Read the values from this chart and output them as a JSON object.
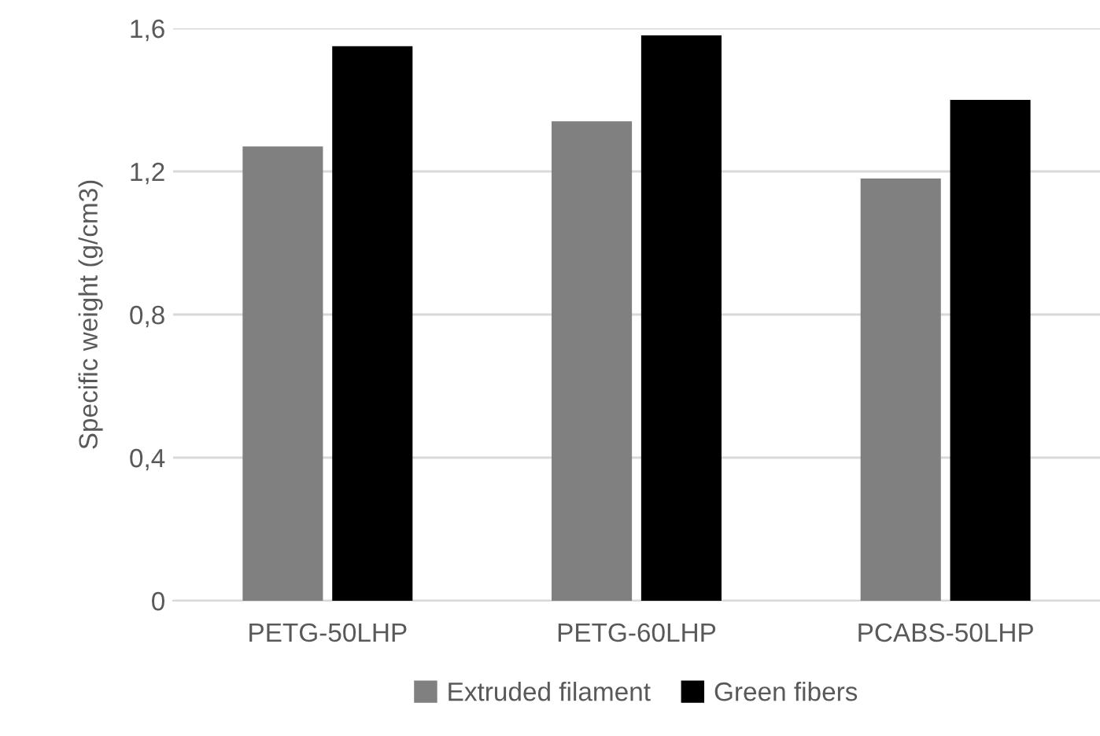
{
  "chart_data": {
    "type": "bar",
    "ylabel": "Specific weight (g/cm3)",
    "categories": [
      "PETG-50LHP",
      "PETG-60LHP",
      "PCABS-50LHP"
    ],
    "series": [
      {
        "name": "Extruded filament",
        "color": "#808080",
        "values": [
          1.27,
          1.34,
          1.18
        ]
      },
      {
        "name": "Green fibers",
        "color": "#000000",
        "values": [
          1.55,
          1.58,
          1.4
        ]
      }
    ],
    "ylim": [
      0,
      1.6
    ],
    "yticks": [
      {
        "value": 0,
        "label": "0"
      },
      {
        "value": 0.4,
        "label": "0,4"
      },
      {
        "value": 0.8,
        "label": "0,8"
      },
      {
        "value": 1.2,
        "label": "1,2"
      },
      {
        "value": 1.6,
        "label": "1,6"
      }
    ],
    "grid": "y",
    "legend": "bottom"
  }
}
